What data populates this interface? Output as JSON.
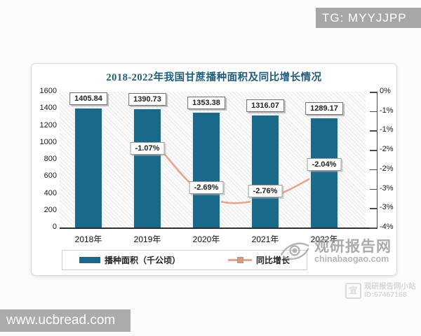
{
  "badges": {
    "tg": "TG: MYYJJPP",
    "url": "www.ucbread.com"
  },
  "brand_watermark": {
    "name": "观研报告网",
    "domain": "chinabaogao.com"
  },
  "corner_watermark": {
    "site": "观研报告网小站",
    "id": "ID:57467168"
  },
  "chart_data": {
    "type": "bar",
    "combo": "bar+line",
    "title": "2018-2022年我国甘蔗播种面积及同比增长情况",
    "categories": [
      "2018年",
      "2019年",
      "2020年",
      "2021年",
      "2022年"
    ],
    "series": [
      {
        "name": "播种面积（千公顷）",
        "type": "bar",
        "color": "#1a698a",
        "values": [
          1405.84,
          1390.73,
          1353.38,
          1316.07,
          1289.17
        ],
        "value_labels": [
          "1405.84",
          "1390.73",
          "1353.38",
          "1316.07",
          "1289.17"
        ]
      },
      {
        "name": "同比增长",
        "type": "line",
        "color": "#e7a58f",
        "marker_color": "#dc9a81",
        "values": [
          null,
          -1.07,
          -2.69,
          -2.76,
          -2.04
        ],
        "value_labels": [
          "",
          "-1.07%",
          "-2.69%",
          "-2.76%",
          "-2.04%"
        ]
      }
    ],
    "left_axis": {
      "min": 0,
      "max": 1600,
      "step": 200,
      "tick_labels": [
        "1600",
        "1400",
        "1200",
        "1000",
        "800",
        "600",
        "400",
        "200",
        "0"
      ]
    },
    "right_axis": {
      "min": -3.5,
      "max": 0,
      "step": -0.5,
      "tick_labels": [
        "0%",
        "-1%",
        "-1%",
        "-2%",
        "-2%",
        "-3%",
        "-3%",
        "-4%"
      ]
    },
    "legend": [
      {
        "label": "播种面积（千公顷）"
      },
      {
        "label": "同比增长"
      }
    ],
    "legend_position": "bottom",
    "grid": "hatched plot background, no gridlines"
  }
}
